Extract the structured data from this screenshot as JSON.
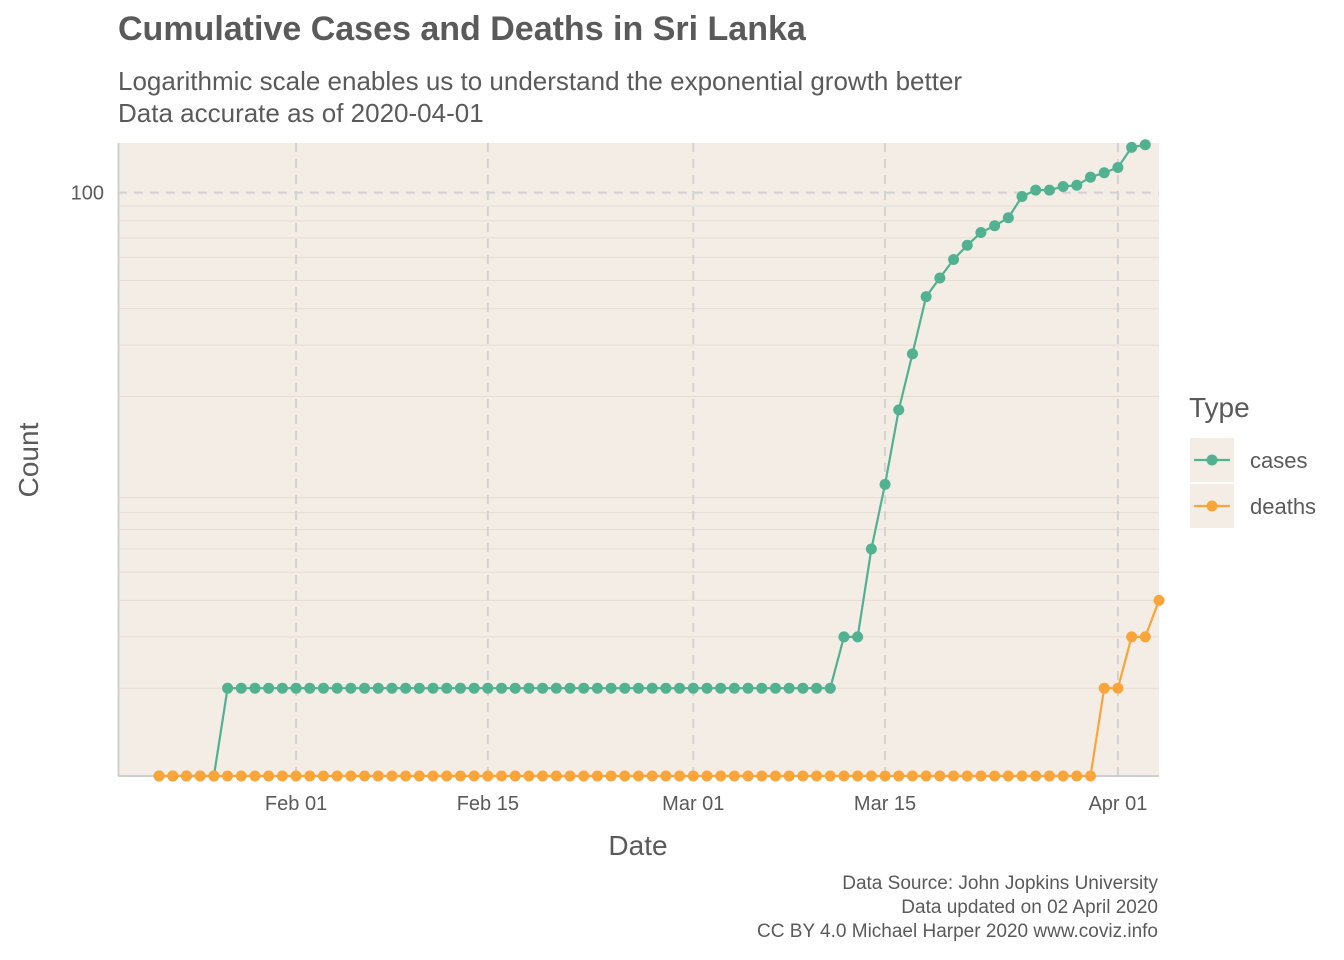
{
  "title": "Cumulative Cases and Deaths in Sri Lanka",
  "subtitle_line1": "Logarithmic scale enables us to understand the exponential growth better",
  "subtitle_line2": "Data accurate as of 2020-04-01",
  "caption_line1": "Data Source: John Jopkins University",
  "caption_line2": "Data updated on 02 April 2020",
  "caption_line3": "CC BY 4.0 Michael Harper 2020 www.coviz.info",
  "chart_data": {
    "type": "line",
    "xlabel": "Date",
    "ylabel": "Count",
    "y_scale": "log",
    "ylim": [
      1,
      148
    ],
    "xlim": [
      "2020-01-19",
      "2020-04-04"
    ],
    "x_ticks": [
      "2020-02-01",
      "2020-02-15",
      "2020-03-01",
      "2020-03-15",
      "2020-04-01"
    ],
    "x_tick_labels": [
      "Feb 01",
      "Feb 15",
      "Mar 01",
      "Mar 15",
      "Apr 01"
    ],
    "y_ticks": [
      100
    ],
    "y_tick_labels": [
      "100"
    ],
    "grid": true,
    "legend_title": "Type",
    "legend_position": "right",
    "x_start": "2020-01-22",
    "series": [
      {
        "name": "cases",
        "color": "#52b191",
        "values": [
          1,
          1,
          1,
          1,
          1,
          2,
          2,
          2,
          2,
          2,
          2,
          2,
          2,
          2,
          2,
          2,
          2,
          2,
          2,
          2,
          2,
          2,
          2,
          2,
          2,
          2,
          2,
          2,
          2,
          2,
          2,
          2,
          2,
          2,
          2,
          2,
          2,
          2,
          2,
          2,
          2,
          2,
          2,
          2,
          2,
          2,
          2,
          2,
          2,
          2,
          3,
          3,
          6,
          10,
          18,
          28,
          44,
          51,
          59,
          66,
          73,
          77,
          82,
          97,
          102,
          102,
          105,
          106,
          113,
          117,
          122,
          143,
          146
        ]
      },
      {
        "name": "deaths",
        "color": "#f9a53a",
        "values": [
          1,
          1,
          1,
          1,
          1,
          1,
          1,
          1,
          1,
          1,
          1,
          1,
          1,
          1,
          1,
          1,
          1,
          1,
          1,
          1,
          1,
          1,
          1,
          1,
          1,
          1,
          1,
          1,
          1,
          1,
          1,
          1,
          1,
          1,
          1,
          1,
          1,
          1,
          1,
          1,
          1,
          1,
          1,
          1,
          1,
          1,
          1,
          1,
          1,
          1,
          1,
          1,
          1,
          1,
          1,
          1,
          1,
          1,
          1,
          1,
          1,
          1,
          1,
          1,
          1,
          1,
          1,
          1,
          1,
          2,
          2,
          3,
          3,
          4
        ]
      }
    ]
  }
}
